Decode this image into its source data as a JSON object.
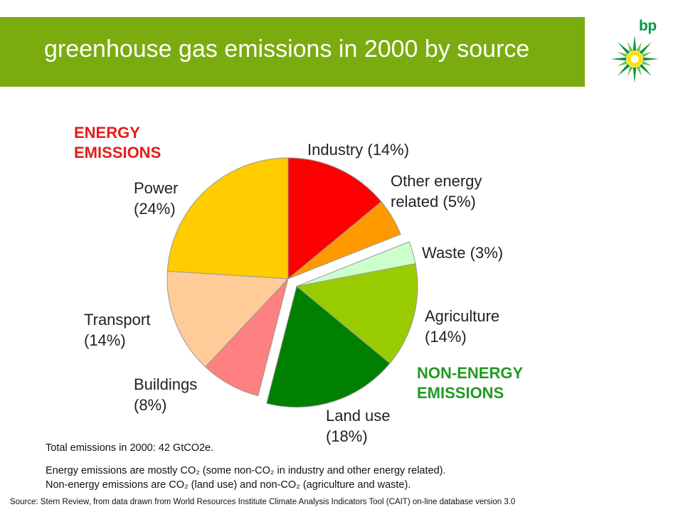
{
  "header": {
    "title": "greenhouse gas emissions in 2000 by source"
  },
  "logo": {
    "text": "bp",
    "icon": "helios-sunburst-icon"
  },
  "colors": {
    "banner": "#7aac0f",
    "energy_heading": "#e41c1c",
    "non_energy_heading": "#229922",
    "logo_green": "#00963f",
    "logo_yellow": "#ffe100"
  },
  "chart_data": {
    "type": "pie",
    "groups": [
      {
        "name": "ENERGY EMISSIONS",
        "color": "#e41c1c"
      },
      {
        "name": "NON-ENERGY EMISSIONS",
        "color": "#229922"
      }
    ],
    "slices": [
      {
        "label": "Industry",
        "value_label": "(14%)",
        "value": 14,
        "group": "ENERGY EMISSIONS",
        "color": "#ff0000"
      },
      {
        "label": "Other energy related",
        "value_label": "(5%)",
        "value": 5,
        "group": "ENERGY EMISSIONS",
        "color": "#ff9900"
      },
      {
        "label": "Waste",
        "value_label": "(3%)",
        "value": 3,
        "group": "NON-ENERGY EMISSIONS",
        "color": "#ccffcc"
      },
      {
        "label": "Agriculture",
        "value_label": "(14%)",
        "value": 14,
        "group": "NON-ENERGY EMISSIONS",
        "color": "#99cc00"
      },
      {
        "label": "Land use",
        "value_label": "(18%)",
        "value": 18,
        "group": "NON-ENERGY EMISSIONS",
        "color": "#008000"
      },
      {
        "label": "Buildings",
        "value_label": "(8%)",
        "value": 8,
        "group": "ENERGY EMISSIONS",
        "color": "#ff8080"
      },
      {
        "label": "Transport",
        "value_label": "(14%)",
        "value": 14,
        "group": "ENERGY EMISSIONS",
        "color": "#ffcc99"
      },
      {
        "label": "Power",
        "value_label": "(24%)",
        "value": 24,
        "group": "ENERGY EMISSIONS",
        "color": "#ffcc00"
      }
    ],
    "total": "Total emissions in 2000: 42 GtCO2e."
  },
  "notes": {
    "energy": "Energy emissions are mostly CO₂ (some non-CO₂ in industry and other energy related).",
    "non_energy": "Non-energy emissions are CO₂ (land use) and non-CO₂ (agriculture and waste)."
  },
  "source": "Source:  Stern Review,  from data drawn from World Resources Institute Climate Analysis Indicators Tool (CAIT)  on-line database version 3.0"
}
